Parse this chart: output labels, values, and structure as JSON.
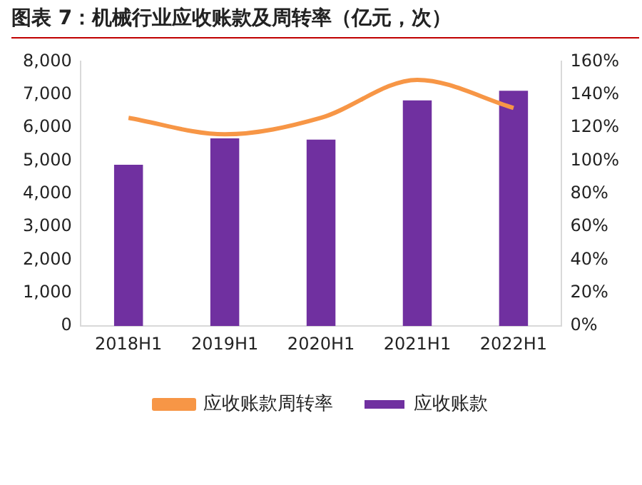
{
  "chart_data": {
    "type": "bar",
    "title": "图表 7：机械行业应收账款及周转率（亿元，次）",
    "categories": [
      "2018H1",
      "2019H1",
      "2020H1",
      "2021H1",
      "2022H1"
    ],
    "series": [
      {
        "name": "应收账款",
        "color": "#7030a0",
        "values": [
          4880,
          5680,
          5640,
          6830,
          7120
        ]
      },
      {
        "name": "应收账款周转率",
        "type": "line",
        "axis": "y2",
        "color": "#f79646",
        "values": [
          126,
          116,
          126,
          149,
          132
        ]
      }
    ],
    "ylim": [
      0,
      8000
    ],
    "yticks": [
      0,
      {
        "value": 1000,
        "label": "1,000"
      },
      {
        "value": 2000,
        "label": "2,000"
      },
      {
        "value": 3000,
        "label": "3,000"
      },
      {
        "value": 4000,
        "label": "4,000"
      },
      {
        "value": 5000,
        "label": "5,000"
      },
      {
        "value": 6000,
        "label": "6,000"
      },
      {
        "value": 7000,
        "label": "7,000"
      },
      {
        "value": 8000,
        "label": "8,000"
      }
    ],
    "y2lim": [
      0,
      160
    ],
    "y2ticks": [
      {
        "value": 0,
        "label": "0%"
      },
      {
        "value": 20,
        "label": "20%"
      },
      {
        "value": 40,
        "label": "40%"
      },
      {
        "value": 60,
        "label": "60%"
      },
      {
        "value": 80,
        "label": "80%"
      },
      {
        "value": 100,
        "label": "100%"
      },
      {
        "value": 120,
        "label": "120%"
      },
      {
        "value": 140,
        "label": "140%"
      },
      {
        "value": 160,
        "label": "160%"
      }
    ],
    "grid": false,
    "legend": "bottom",
    "marker": "none",
    "line_style": "solid"
  }
}
